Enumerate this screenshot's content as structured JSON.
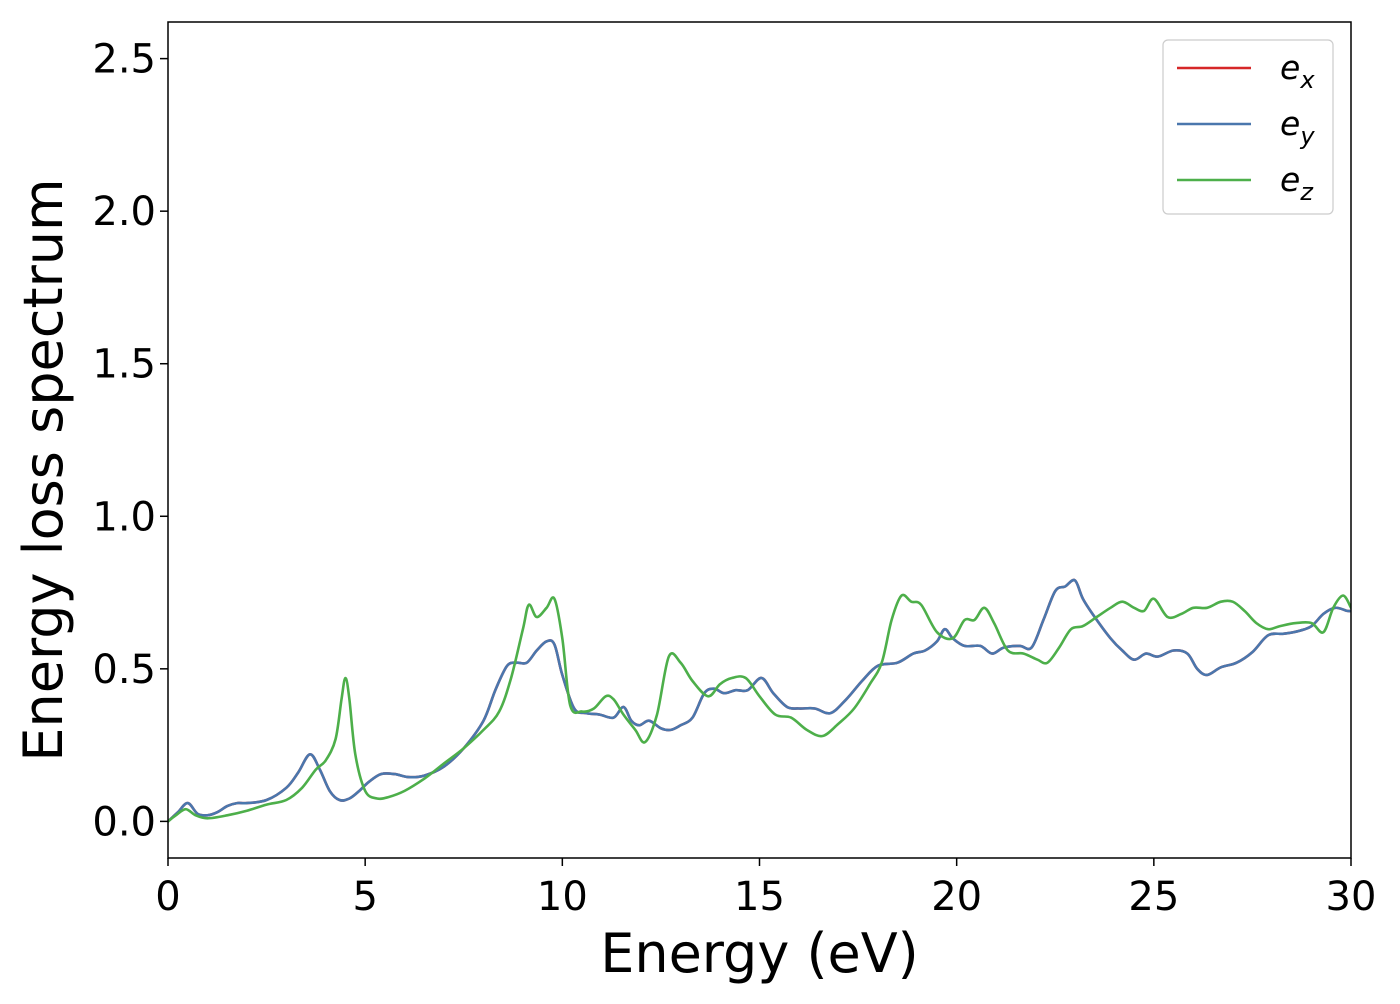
{
  "chart_data": {
    "type": "line",
    "title": "",
    "xlabel": "Energy (eV)",
    "ylabel": "Energy loss spectrum",
    "xlim": [
      0,
      30
    ],
    "ylim": [
      -0.12,
      2.62
    ],
    "xticks": [
      0,
      5,
      10,
      15,
      20,
      25,
      30
    ],
    "xtick_labels": [
      "0",
      "5",
      "10",
      "15",
      "20",
      "25",
      "30"
    ],
    "yticks": [
      0.0,
      0.5,
      1.0,
      1.5,
      2.0,
      2.5
    ],
    "ytick_labels": [
      "0.0",
      "0.5",
      "1.0",
      "1.5",
      "2.0",
      "2.5"
    ],
    "grid": false,
    "legend_position": "top-right",
    "series": [
      {
        "name": "e_x",
        "legend_base": "e",
        "legend_sub": "x",
        "color": "#d62728",
        "x": [
          0.0,
          0.25,
          0.5,
          0.75,
          1.0,
          1.25,
          1.5,
          1.75,
          2.0,
          2.5,
          3.0,
          3.3,
          3.6,
          3.85,
          4.1,
          4.35,
          4.6,
          4.85,
          5.1,
          5.4,
          5.75,
          6.1,
          6.5,
          7.0,
          7.5,
          8.0,
          8.3,
          8.6,
          8.85,
          9.1,
          9.35,
          9.6,
          9.8,
          10.0,
          10.3,
          10.6,
          10.95,
          11.3,
          11.55,
          11.75,
          11.95,
          12.2,
          12.5,
          12.75,
          13.0,
          13.3,
          13.6,
          13.85,
          14.1,
          14.4,
          14.7,
          15.05,
          15.35,
          15.7,
          16.0,
          16.4,
          16.8,
          17.2,
          17.6,
          18.0,
          18.5,
          18.9,
          19.2,
          19.5,
          19.7,
          19.9,
          20.2,
          20.6,
          20.9,
          21.2,
          21.6,
          21.9,
          22.2,
          22.5,
          22.75,
          23.0,
          23.2,
          23.5,
          23.9,
          24.2,
          24.5,
          24.8,
          25.1,
          25.5,
          25.85,
          26.1,
          26.35,
          26.7,
          27.1,
          27.5,
          27.9,
          28.3,
          28.7,
          29.0,
          29.3,
          29.6,
          29.9,
          30.0
        ],
        "y": [
          0.0,
          0.03,
          0.06,
          0.025,
          0.02,
          0.03,
          0.05,
          0.06,
          0.06,
          0.07,
          0.11,
          0.16,
          0.22,
          0.17,
          0.1,
          0.07,
          0.075,
          0.1,
          0.13,
          0.155,
          0.155,
          0.145,
          0.15,
          0.18,
          0.24,
          0.33,
          0.43,
          0.51,
          0.52,
          0.52,
          0.56,
          0.59,
          0.58,
          0.48,
          0.37,
          0.355,
          0.35,
          0.34,
          0.375,
          0.33,
          0.315,
          0.33,
          0.305,
          0.3,
          0.315,
          0.34,
          0.42,
          0.435,
          0.42,
          0.43,
          0.43,
          0.47,
          0.42,
          0.375,
          0.37,
          0.37,
          0.355,
          0.4,
          0.46,
          0.51,
          0.52,
          0.55,
          0.56,
          0.59,
          0.63,
          0.6,
          0.575,
          0.575,
          0.55,
          0.57,
          0.575,
          0.57,
          0.66,
          0.755,
          0.77,
          0.79,
          0.73,
          0.67,
          0.6,
          0.56,
          0.53,
          0.55,
          0.54,
          0.56,
          0.55,
          0.5,
          0.48,
          0.505,
          0.52,
          0.555,
          0.61,
          0.615,
          0.625,
          0.64,
          0.68,
          0.7,
          0.69,
          0.69
        ]
      },
      {
        "name": "e_y",
        "legend_base": "e",
        "legend_sub": "y",
        "color": "#4a77ad",
        "x": [
          0.0,
          0.25,
          0.5,
          0.75,
          1.0,
          1.25,
          1.5,
          1.75,
          2.0,
          2.5,
          3.0,
          3.3,
          3.6,
          3.85,
          4.1,
          4.35,
          4.6,
          4.85,
          5.1,
          5.4,
          5.75,
          6.1,
          6.5,
          7.0,
          7.5,
          8.0,
          8.3,
          8.6,
          8.85,
          9.1,
          9.35,
          9.6,
          9.8,
          10.0,
          10.3,
          10.6,
          10.95,
          11.3,
          11.55,
          11.75,
          11.95,
          12.2,
          12.5,
          12.75,
          13.0,
          13.3,
          13.6,
          13.85,
          14.1,
          14.4,
          14.7,
          15.05,
          15.35,
          15.7,
          16.0,
          16.4,
          16.8,
          17.2,
          17.6,
          18.0,
          18.5,
          18.9,
          19.2,
          19.5,
          19.7,
          19.9,
          20.2,
          20.6,
          20.9,
          21.2,
          21.6,
          21.9,
          22.2,
          22.5,
          22.75,
          23.0,
          23.2,
          23.5,
          23.9,
          24.2,
          24.5,
          24.8,
          25.1,
          25.5,
          25.85,
          26.1,
          26.35,
          26.7,
          27.1,
          27.5,
          27.9,
          28.3,
          28.7,
          29.0,
          29.3,
          29.6,
          29.9,
          30.0
        ],
        "y": [
          0.0,
          0.03,
          0.06,
          0.025,
          0.02,
          0.03,
          0.05,
          0.06,
          0.06,
          0.07,
          0.11,
          0.16,
          0.22,
          0.17,
          0.1,
          0.07,
          0.075,
          0.1,
          0.13,
          0.155,
          0.155,
          0.145,
          0.15,
          0.18,
          0.24,
          0.33,
          0.43,
          0.51,
          0.52,
          0.52,
          0.56,
          0.59,
          0.58,
          0.48,
          0.37,
          0.355,
          0.35,
          0.34,
          0.375,
          0.33,
          0.315,
          0.33,
          0.305,
          0.3,
          0.315,
          0.34,
          0.42,
          0.435,
          0.42,
          0.43,
          0.43,
          0.47,
          0.42,
          0.375,
          0.37,
          0.37,
          0.355,
          0.4,
          0.46,
          0.51,
          0.52,
          0.55,
          0.56,
          0.59,
          0.63,
          0.6,
          0.575,
          0.575,
          0.55,
          0.57,
          0.575,
          0.57,
          0.66,
          0.755,
          0.77,
          0.79,
          0.73,
          0.67,
          0.6,
          0.56,
          0.53,
          0.55,
          0.54,
          0.56,
          0.55,
          0.5,
          0.48,
          0.505,
          0.52,
          0.555,
          0.61,
          0.615,
          0.625,
          0.64,
          0.68,
          0.7,
          0.69,
          0.69
        ]
      },
      {
        "name": "e_z",
        "legend_base": "e",
        "legend_sub": "z",
        "color": "#4daf4a",
        "x": [
          0.0,
          0.2,
          0.45,
          0.7,
          1.0,
          1.5,
          2.0,
          2.5,
          3.0,
          3.4,
          3.75,
          4.0,
          4.25,
          4.4,
          4.5,
          4.6,
          4.75,
          5.0,
          5.3,
          5.6,
          6.0,
          6.5,
          7.0,
          7.5,
          8.0,
          8.4,
          8.7,
          9.0,
          9.15,
          9.35,
          9.6,
          9.8,
          10.0,
          10.2,
          10.5,
          10.8,
          11.1,
          11.3,
          11.55,
          11.85,
          12.1,
          12.4,
          12.7,
          13.0,
          13.3,
          13.7,
          14.0,
          14.3,
          14.65,
          15.0,
          15.4,
          15.8,
          16.2,
          16.6,
          17.0,
          17.4,
          17.8,
          18.1,
          18.35,
          18.6,
          18.85,
          19.1,
          19.5,
          19.9,
          20.2,
          20.45,
          20.7,
          20.95,
          21.3,
          21.7,
          22.05,
          22.3,
          22.6,
          22.9,
          23.2,
          23.55,
          23.9,
          24.2,
          24.5,
          24.75,
          25.0,
          25.35,
          25.7,
          26.0,
          26.35,
          26.7,
          27.0,
          27.3,
          27.6,
          27.9,
          28.2,
          28.6,
          29.0,
          29.3,
          29.55,
          29.8,
          30.0
        ],
        "y": [
          0.0,
          0.02,
          0.04,
          0.02,
          0.01,
          0.02,
          0.035,
          0.055,
          0.07,
          0.11,
          0.17,
          0.2,
          0.27,
          0.4,
          0.47,
          0.4,
          0.22,
          0.1,
          0.075,
          0.08,
          0.1,
          0.14,
          0.19,
          0.24,
          0.3,
          0.36,
          0.47,
          0.63,
          0.71,
          0.67,
          0.7,
          0.73,
          0.6,
          0.38,
          0.36,
          0.37,
          0.41,
          0.4,
          0.35,
          0.3,
          0.26,
          0.35,
          0.54,
          0.52,
          0.46,
          0.41,
          0.45,
          0.47,
          0.47,
          0.41,
          0.35,
          0.34,
          0.3,
          0.28,
          0.32,
          0.37,
          0.45,
          0.52,
          0.66,
          0.74,
          0.72,
          0.71,
          0.62,
          0.6,
          0.66,
          0.66,
          0.7,
          0.65,
          0.56,
          0.55,
          0.53,
          0.52,
          0.57,
          0.63,
          0.64,
          0.67,
          0.7,
          0.72,
          0.7,
          0.69,
          0.73,
          0.67,
          0.68,
          0.7,
          0.7,
          0.72,
          0.72,
          0.69,
          0.65,
          0.63,
          0.64,
          0.65,
          0.65,
          0.62,
          0.7,
          0.74,
          0.7
        ]
      }
    ]
  }
}
